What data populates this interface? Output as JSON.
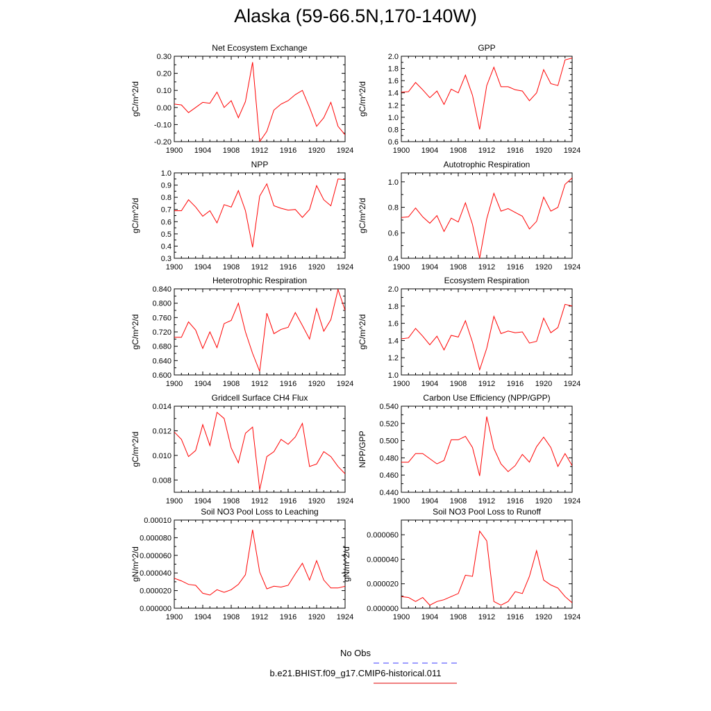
{
  "page_title": "Alaska (59-66.5N,170-140W)",
  "legend": {
    "items": [
      {
        "label": "No Obs",
        "color": "#3b3bff",
        "dash": "dashed"
      },
      {
        "label": "b.e21.BHIST.f09_g17.CMIP6-historical.011",
        "color": "#e00000",
        "dash": "solid"
      }
    ]
  },
  "colors": {
    "series": "#ff0000",
    "axis": "#000000",
    "background": "#ffffff"
  },
  "chart_data": [
    {
      "type": "line",
      "title": "Net Ecosystem Exchange",
      "ylabel": "gC/m^2/d",
      "xlim": [
        1900,
        1924
      ],
      "ylim": [
        -0.2,
        0.3
      ],
      "xticks": [
        1900,
        1904,
        1908,
        1912,
        1916,
        1920,
        1924
      ],
      "yticks": [
        -0.2,
        -0.1,
        0.0,
        0.1,
        0.2,
        0.3
      ],
      "yticklabels": [
        "-0.20",
        "-0.10",
        "0.00",
        "0.10",
        "0.20",
        "0.30"
      ],
      "series": [
        {
          "x": [
            1900,
            1901,
            1902,
            1903,
            1904,
            1905,
            1906,
            1907,
            1908,
            1909,
            1910,
            1911,
            1912,
            1913,
            1914,
            1915,
            1916,
            1917,
            1918,
            1919,
            1920,
            1921,
            1922,
            1923,
            1924
          ],
          "y": [
            0.02,
            0.015,
            -0.03,
            0.0,
            0.03,
            0.025,
            0.09,
            0.0,
            0.04,
            -0.06,
            0.035,
            0.265,
            -0.2,
            -0.14,
            -0.015,
            0.02,
            0.04,
            0.075,
            0.1,
            0.0,
            -0.11,
            -0.06,
            0.03,
            -0.11,
            -0.16
          ]
        }
      ]
    },
    {
      "type": "line",
      "title": "GPP",
      "ylabel": "gC/m^2/d",
      "xlim": [
        1900,
        1924
      ],
      "ylim": [
        0.6,
        2.0
      ],
      "xticks": [
        1900,
        1904,
        1908,
        1912,
        1916,
        1920,
        1924
      ],
      "yticks": [
        0.6,
        0.8,
        1.0,
        1.2,
        1.4,
        1.6,
        1.8,
        2.0
      ],
      "yticklabels": [
        "0.6",
        "0.8",
        "1.0",
        "1.2",
        "1.4",
        "1.6",
        "1.8",
        "2.0"
      ],
      "series": [
        {
          "x": [
            1900,
            1901,
            1902,
            1903,
            1904,
            1905,
            1906,
            1907,
            1908,
            1909,
            1910,
            1911,
            1912,
            1913,
            1914,
            1915,
            1916,
            1917,
            1918,
            1919,
            1920,
            1921,
            1922,
            1923,
            1924
          ],
          "y": [
            1.41,
            1.42,
            1.57,
            1.45,
            1.32,
            1.43,
            1.21,
            1.46,
            1.4,
            1.69,
            1.36,
            0.8,
            1.52,
            1.82,
            1.5,
            1.5,
            1.45,
            1.43,
            1.27,
            1.4,
            1.78,
            1.55,
            1.52,
            1.94,
            1.97
          ]
        }
      ]
    },
    {
      "type": "line",
      "title": "NPP",
      "ylabel": "gC/m^2/d",
      "xlim": [
        1900,
        1924
      ],
      "ylim": [
        0.3,
        1.0
      ],
      "xticks": [
        1900,
        1904,
        1908,
        1912,
        1916,
        1920,
        1924
      ],
      "yticks": [
        0.3,
        0.4,
        0.5,
        0.6,
        0.7,
        0.8,
        0.9,
        1.0
      ],
      "yticklabels": [
        "0.3",
        "0.4",
        "0.5",
        "0.6",
        "0.7",
        "0.8",
        "0.9",
        "1.0"
      ],
      "series": [
        {
          "x": [
            1900,
            1901,
            1902,
            1903,
            1904,
            1905,
            1906,
            1907,
            1908,
            1909,
            1910,
            1911,
            1912,
            1913,
            1914,
            1915,
            1916,
            1917,
            1918,
            1919,
            1920,
            1921,
            1922,
            1923,
            1924
          ],
          "y": [
            0.69,
            0.69,
            0.78,
            0.72,
            0.645,
            0.69,
            0.59,
            0.74,
            0.72,
            0.855,
            0.69,
            0.39,
            0.81,
            0.91,
            0.73,
            0.71,
            0.695,
            0.7,
            0.635,
            0.7,
            0.895,
            0.78,
            0.73,
            0.95,
            0.945
          ]
        }
      ]
    },
    {
      "type": "line",
      "title": "Autotrophic Respiration",
      "ylabel": "gC/m^2/d",
      "xlim": [
        1900,
        1924
      ],
      "ylim": [
        0.4,
        1.07
      ],
      "xticks": [
        1900,
        1904,
        1908,
        1912,
        1916,
        1920,
        1924
      ],
      "yticks": [
        0.4,
        0.6,
        0.8,
        1.0
      ],
      "yticklabels": [
        "0.4",
        "0.6",
        "0.8",
        "1.0"
      ],
      "series": [
        {
          "x": [
            1900,
            1901,
            1902,
            1903,
            1904,
            1905,
            1906,
            1907,
            1908,
            1909,
            1910,
            1911,
            1912,
            1913,
            1914,
            1915,
            1916,
            1917,
            1918,
            1919,
            1920,
            1921,
            1922,
            1923,
            1924
          ],
          "y": [
            0.72,
            0.725,
            0.795,
            0.725,
            0.675,
            0.735,
            0.61,
            0.715,
            0.685,
            0.835,
            0.665,
            0.4,
            0.71,
            0.91,
            0.77,
            0.79,
            0.76,
            0.73,
            0.63,
            0.69,
            0.88,
            0.77,
            0.8,
            0.98,
            1.03
          ]
        }
      ]
    },
    {
      "type": "line",
      "title": "Heterotrophic Respiration",
      "ylabel": "gC/m^2/d",
      "xlim": [
        1900,
        1924
      ],
      "ylim": [
        0.6,
        0.84
      ],
      "xticks": [
        1900,
        1904,
        1908,
        1912,
        1916,
        1920,
        1924
      ],
      "yticks": [
        0.6,
        0.64,
        0.68,
        0.72,
        0.76,
        0.8,
        0.84
      ],
      "yticklabels": [
        "0.600",
        "0.640",
        "0.680",
        "0.720",
        "0.760",
        "0.800",
        "0.840"
      ],
      "series": [
        {
          "x": [
            1900,
            1901,
            1902,
            1903,
            1904,
            1905,
            1906,
            1907,
            1908,
            1909,
            1910,
            1911,
            1912,
            1913,
            1914,
            1915,
            1916,
            1917,
            1918,
            1919,
            1920,
            1921,
            1922,
            1923,
            1924
          ],
          "y": [
            0.705,
            0.705,
            0.748,
            0.725,
            0.674,
            0.72,
            0.676,
            0.743,
            0.752,
            0.8,
            0.72,
            0.66,
            0.61,
            0.772,
            0.715,
            0.727,
            0.733,
            0.774,
            0.738,
            0.7,
            0.785,
            0.722,
            0.754,
            0.838,
            0.78
          ]
        }
      ]
    },
    {
      "type": "line",
      "title": "Ecosystem Respiration",
      "ylabel": "gC/m^2/d",
      "xlim": [
        1900,
        1924
      ],
      "ylim": [
        1.0,
        2.0
      ],
      "xticks": [
        1900,
        1904,
        1908,
        1912,
        1916,
        1920,
        1924
      ],
      "yticks": [
        1.0,
        1.2,
        1.4,
        1.6,
        1.8,
        2.0
      ],
      "yticklabels": [
        "1.0",
        "1.2",
        "1.4",
        "1.6",
        "1.8",
        "2.0"
      ],
      "series": [
        {
          "x": [
            1900,
            1901,
            1902,
            1903,
            1904,
            1905,
            1906,
            1907,
            1908,
            1909,
            1910,
            1911,
            1912,
            1913,
            1914,
            1915,
            1916,
            1917,
            1918,
            1919,
            1920,
            1921,
            1922,
            1923,
            1924
          ],
          "y": [
            1.42,
            1.43,
            1.54,
            1.45,
            1.35,
            1.45,
            1.29,
            1.46,
            1.44,
            1.63,
            1.38,
            1.06,
            1.31,
            1.68,
            1.48,
            1.51,
            1.49,
            1.5,
            1.37,
            1.39,
            1.66,
            1.49,
            1.55,
            1.82,
            1.8
          ]
        }
      ]
    },
    {
      "type": "line",
      "title": "Gridcell Surface CH4 Flux",
      "ylabel": "gC/m^2/d",
      "xlim": [
        1900,
        1924
      ],
      "ylim": [
        0.007,
        0.014
      ],
      "xticks": [
        1900,
        1904,
        1908,
        1912,
        1916,
        1920,
        1924
      ],
      "yticks": [
        0.008,
        0.01,
        0.012,
        0.014
      ],
      "yticklabels": [
        "0.008",
        "0.010",
        "0.012",
        "0.014"
      ],
      "series": [
        {
          "x": [
            1900,
            1901,
            1902,
            1903,
            1904,
            1905,
            1906,
            1907,
            1908,
            1909,
            1910,
            1911,
            1912,
            1913,
            1914,
            1915,
            1916,
            1917,
            1918,
            1919,
            1920,
            1921,
            1922,
            1923,
            1924
          ],
          "y": [
            0.0119,
            0.0113,
            0.0099,
            0.0104,
            0.0125,
            0.0108,
            0.0135,
            0.013,
            0.0106,
            0.0094,
            0.0118,
            0.0123,
            0.0072,
            0.0099,
            0.0103,
            0.0113,
            0.0109,
            0.0115,
            0.0126,
            0.0091,
            0.0093,
            0.0103,
            0.0099,
            0.0091,
            0.0085
          ]
        }
      ]
    },
    {
      "type": "line",
      "title": "Carbon Use Efficiency (NPP/GPP)",
      "ylabel": "NPP/GPP",
      "xlim": [
        1900,
        1924
      ],
      "ylim": [
        0.44,
        0.54
      ],
      "xticks": [
        1900,
        1904,
        1908,
        1912,
        1916,
        1920,
        1924
      ],
      "yticks": [
        0.44,
        0.46,
        0.48,
        0.5,
        0.52,
        0.54
      ],
      "yticklabels": [
        "0.440",
        "0.460",
        "0.480",
        "0.500",
        "0.520",
        "0.540"
      ],
      "series": [
        {
          "x": [
            1900,
            1901,
            1902,
            1903,
            1904,
            1905,
            1906,
            1907,
            1908,
            1909,
            1910,
            1911,
            1912,
            1913,
            1914,
            1915,
            1916,
            1917,
            1918,
            1919,
            1920,
            1921,
            1922,
            1923,
            1924
          ],
          "y": [
            0.475,
            0.475,
            0.485,
            0.485,
            0.479,
            0.473,
            0.477,
            0.501,
            0.501,
            0.505,
            0.492,
            0.459,
            0.528,
            0.491,
            0.473,
            0.464,
            0.471,
            0.484,
            0.475,
            0.493,
            0.504,
            0.492,
            0.47,
            0.485,
            0.471
          ]
        }
      ]
    },
    {
      "type": "line",
      "title": "Soil NO3 Pool Loss to Leaching",
      "ylabel": "gN/m^2/d",
      "xlim": [
        1900,
        1924
      ],
      "ylim": [
        0,
        0.0001
      ],
      "xticks": [
        1900,
        1904,
        1908,
        1912,
        1916,
        1920,
        1924
      ],
      "yticks": [
        0,
        2e-05,
        4e-05,
        6e-05,
        8e-05,
        0.0001
      ],
      "yticklabels": [
        "0.000000",
        "0.000020",
        "0.000040",
        "0.000060",
        "0.000080",
        "0.00010"
      ],
      "series": [
        {
          "x": [
            1900,
            1901,
            1902,
            1903,
            1904,
            1905,
            1906,
            1907,
            1908,
            1909,
            1910,
            1911,
            1912,
            1913,
            1914,
            1915,
            1916,
            1917,
            1918,
            1919,
            1920,
            1921,
            1922,
            1923,
            1924
          ],
          "y": [
            3.4e-05,
            3.1e-05,
            2.7e-05,
            2.6e-05,
            1.7e-05,
            1.5e-05,
            2.1e-05,
            1.8e-05,
            2.1e-05,
            2.7e-05,
            3.8e-05,
            8.9e-05,
            4.1e-05,
            2.2e-05,
            2.5e-05,
            2.4e-05,
            2.6e-05,
            3.9e-05,
            5.1e-05,
            3.2e-05,
            5.4e-05,
            3.2e-05,
            2.3e-05,
            2.3e-05,
            2.5e-05
          ]
        }
      ]
    },
    {
      "type": "line",
      "title": "Soil NO3 Pool Loss to Runoff",
      "ylabel": "gN/m^2/d",
      "xlim": [
        1900,
        1924
      ],
      "ylim": [
        0,
        7.2e-05
      ],
      "xticks": [
        1900,
        1904,
        1908,
        1912,
        1916,
        1920,
        1924
      ],
      "yticks": [
        0,
        2e-05,
        4e-05,
        6e-05
      ],
      "yticklabels": [
        "0.000000",
        "0.000020",
        "0.000040",
        "0.000060"
      ],
      "series": [
        {
          "x": [
            1900,
            1901,
            1902,
            1903,
            1904,
            1905,
            1906,
            1907,
            1908,
            1909,
            1910,
            1911,
            1912,
            1913,
            1914,
            1915,
            1916,
            1917,
            1918,
            1919,
            1920,
            1921,
            1922,
            1923,
            1924
          ],
          "y": [
            9.5e-06,
            8.8e-06,
            5.5e-06,
            8.8e-06,
            2.5e-06,
            5.5e-06,
            7e-06,
            9.5e-06,
            1.2e-05,
            2.7e-05,
            2.6e-05,
            6.3e-05,
            5.5e-05,
            5.5e-06,
            2.5e-06,
            5.5e-06,
            1.35e-05,
            1.2e-05,
            2.6e-05,
            4.7e-05,
            2.3e-05,
            1.9e-05,
            1.65e-05,
            9.5e-06,
            4.5e-06
          ]
        }
      ]
    }
  ]
}
